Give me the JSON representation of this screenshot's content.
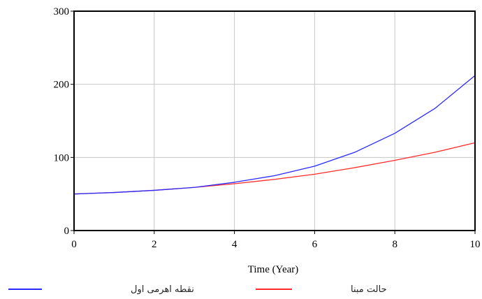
{
  "chart_data": {
    "type": "line",
    "xlabel": "Time (Year)",
    "ylabel": "",
    "xlim": [
      0,
      10
    ],
    "ylim": [
      0,
      300
    ],
    "x_ticks": [
      0,
      2,
      4,
      6,
      8,
      10
    ],
    "y_ticks": [
      0,
      100,
      200,
      300
    ],
    "x_tick_labels": [
      "0",
      "2",
      "4",
      "6",
      "8",
      "10"
    ],
    "y_tick_labels": [
      "0",
      "100",
      "200",
      "300"
    ],
    "grid": true,
    "legend_position": "bottom",
    "x": [
      0,
      1,
      2,
      3,
      4,
      5,
      6,
      7,
      8,
      9,
      10
    ],
    "series": [
      {
        "name": "نقطه اهرمی اول",
        "color": "#2a2aff",
        "values": [
          50,
          52,
          55,
          59,
          66,
          75,
          88,
          107,
          133,
          167,
          212
        ]
      },
      {
        "name": "حالت مبنا",
        "color": "#ff2a2a",
        "values": [
          50,
          52,
          55,
          59,
          64,
          70,
          77,
          86,
          96,
          107,
          120
        ]
      }
    ]
  }
}
